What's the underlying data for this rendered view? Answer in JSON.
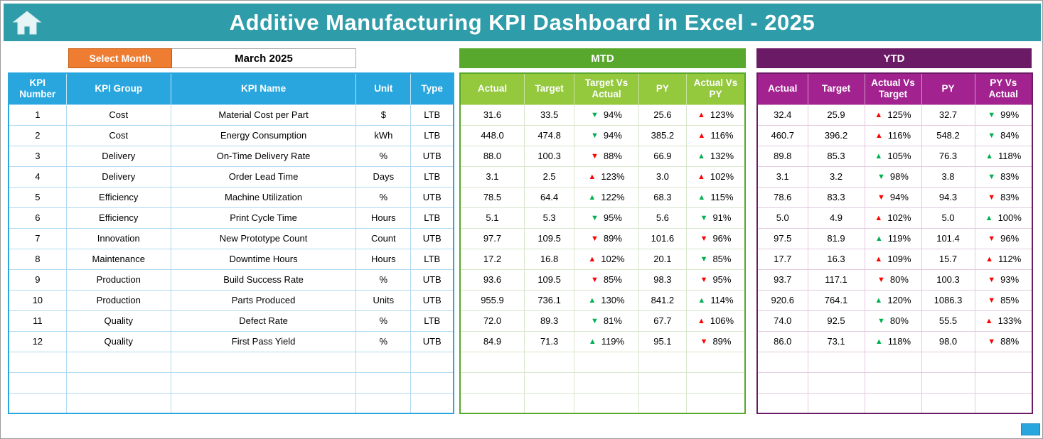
{
  "header": {
    "title": "Additive Manufacturing KPI Dashboard in Excel - 2025"
  },
  "controls": {
    "select_month_label": "Select Month",
    "selected_month": "March 2025"
  },
  "sections": {
    "mtd_label": "MTD",
    "ytd_label": "YTD"
  },
  "icons": {
    "up": "▲",
    "down": "▼",
    "home": "home-icon"
  },
  "colors": {
    "good": "#00B050",
    "bad": "#FF0000",
    "teal_header": "#2F9DA9",
    "orange": "#EE7D31",
    "mtd_green": "#57A82C",
    "mtd_header_green": "#94C83D",
    "ytd_purple": "#6B1A66",
    "ytd_header_magenta": "#A2238F",
    "kpi_header_blue": "#2AA6DF"
  },
  "table": {
    "left_headers": [
      "KPI Number",
      "KPI Group",
      "KPI Name",
      "Unit",
      "Type"
    ],
    "mtd_headers": [
      "Actual",
      "Target",
      "Target Vs Actual",
      "PY",
      "Actual Vs PY"
    ],
    "ytd_headers": [
      "Actual",
      "Target",
      "Actual Vs Target",
      "PY",
      "PY Vs Actual"
    ],
    "empty_rows": 3,
    "rows": [
      {
        "number": "1",
        "group": "Cost",
        "name": "Material Cost per Part",
        "unit": "$",
        "type": "LTB",
        "mtd": {
          "actual": "31.6",
          "target": "33.5",
          "target_vs_actual": {
            "dir": "down",
            "color": "good",
            "value": "94%"
          },
          "py": "25.6",
          "actual_vs_py": {
            "dir": "up",
            "color": "bad",
            "value": "123%"
          }
        },
        "ytd": {
          "actual": "32.4",
          "target": "25.9",
          "actual_vs_target": {
            "dir": "up",
            "color": "bad",
            "value": "125%"
          },
          "py": "32.7",
          "py_vs_actual": {
            "dir": "down",
            "color": "good",
            "value": "99%"
          }
        }
      },
      {
        "number": "2",
        "group": "Cost",
        "name": "Energy Consumption",
        "unit": "kWh",
        "type": "LTB",
        "mtd": {
          "actual": "448.0",
          "target": "474.8",
          "target_vs_actual": {
            "dir": "down",
            "color": "good",
            "value": "94%"
          },
          "py": "385.2",
          "actual_vs_py": {
            "dir": "up",
            "color": "bad",
            "value": "116%"
          }
        },
        "ytd": {
          "actual": "460.7",
          "target": "396.2",
          "actual_vs_target": {
            "dir": "up",
            "color": "bad",
            "value": "116%"
          },
          "py": "548.2",
          "py_vs_actual": {
            "dir": "down",
            "color": "good",
            "value": "84%"
          }
        }
      },
      {
        "number": "3",
        "group": "Delivery",
        "name": "On-Time Delivery Rate",
        "unit": "%",
        "type": "UTB",
        "mtd": {
          "actual": "88.0",
          "target": "100.3",
          "target_vs_actual": {
            "dir": "down",
            "color": "bad",
            "value": "88%"
          },
          "py": "66.9",
          "actual_vs_py": {
            "dir": "up",
            "color": "good",
            "value": "132%"
          }
        },
        "ytd": {
          "actual": "89.8",
          "target": "85.3",
          "actual_vs_target": {
            "dir": "up",
            "color": "good",
            "value": "105%"
          },
          "py": "76.3",
          "py_vs_actual": {
            "dir": "up",
            "color": "good",
            "value": "118%"
          }
        }
      },
      {
        "number": "4",
        "group": "Delivery",
        "name": "Order Lead Time",
        "unit": "Days",
        "type": "LTB",
        "mtd": {
          "actual": "3.1",
          "target": "2.5",
          "target_vs_actual": {
            "dir": "up",
            "color": "bad",
            "value": "123%"
          },
          "py": "3.0",
          "actual_vs_py": {
            "dir": "up",
            "color": "bad",
            "value": "102%"
          }
        },
        "ytd": {
          "actual": "3.1",
          "target": "3.2",
          "actual_vs_target": {
            "dir": "down",
            "color": "good",
            "value": "98%"
          },
          "py": "3.8",
          "py_vs_actual": {
            "dir": "down",
            "color": "good",
            "value": "83%"
          }
        }
      },
      {
        "number": "5",
        "group": "Efficiency",
        "name": "Machine Utilization",
        "unit": "%",
        "type": "UTB",
        "mtd": {
          "actual": "78.5",
          "target": "64.4",
          "target_vs_actual": {
            "dir": "up",
            "color": "good",
            "value": "122%"
          },
          "py": "68.3",
          "actual_vs_py": {
            "dir": "up",
            "color": "good",
            "value": "115%"
          }
        },
        "ytd": {
          "actual": "78.6",
          "target": "83.3",
          "actual_vs_target": {
            "dir": "down",
            "color": "bad",
            "value": "94%"
          },
          "py": "94.3",
          "py_vs_actual": {
            "dir": "down",
            "color": "bad",
            "value": "83%"
          }
        }
      },
      {
        "number": "6",
        "group": "Efficiency",
        "name": "Print Cycle Time",
        "unit": "Hours",
        "type": "LTB",
        "mtd": {
          "actual": "5.1",
          "target": "5.3",
          "target_vs_actual": {
            "dir": "down",
            "color": "good",
            "value": "95%"
          },
          "py": "5.6",
          "actual_vs_py": {
            "dir": "down",
            "color": "good",
            "value": "91%"
          }
        },
        "ytd": {
          "actual": "5.0",
          "target": "4.9",
          "actual_vs_target": {
            "dir": "up",
            "color": "bad",
            "value": "102%"
          },
          "py": "5.0",
          "py_vs_actual": {
            "dir": "up",
            "color": "good",
            "value": "100%"
          }
        }
      },
      {
        "number": "7",
        "group": "Innovation",
        "name": "New Prototype Count",
        "unit": "Count",
        "type": "UTB",
        "mtd": {
          "actual": "97.7",
          "target": "109.5",
          "target_vs_actual": {
            "dir": "down",
            "color": "bad",
            "value": "89%"
          },
          "py": "101.6",
          "actual_vs_py": {
            "dir": "down",
            "color": "bad",
            "value": "96%"
          }
        },
        "ytd": {
          "actual": "97.5",
          "target": "81.9",
          "actual_vs_target": {
            "dir": "up",
            "color": "good",
            "value": "119%"
          },
          "py": "101.4",
          "py_vs_actual": {
            "dir": "down",
            "color": "bad",
            "value": "96%"
          }
        }
      },
      {
        "number": "8",
        "group": "Maintenance",
        "name": "Downtime Hours",
        "unit": "Hours",
        "type": "LTB",
        "mtd": {
          "actual": "17.2",
          "target": "16.8",
          "target_vs_actual": {
            "dir": "up",
            "color": "bad",
            "value": "102%"
          },
          "py": "20.1",
          "actual_vs_py": {
            "dir": "down",
            "color": "good",
            "value": "85%"
          }
        },
        "ytd": {
          "actual": "17.7",
          "target": "16.3",
          "actual_vs_target": {
            "dir": "up",
            "color": "bad",
            "value": "109%"
          },
          "py": "15.7",
          "py_vs_actual": {
            "dir": "up",
            "color": "bad",
            "value": "112%"
          }
        }
      },
      {
        "number": "9",
        "group": "Production",
        "name": "Build Success Rate",
        "unit": "%",
        "type": "UTB",
        "mtd": {
          "actual": "93.6",
          "target": "109.5",
          "target_vs_actual": {
            "dir": "down",
            "color": "bad",
            "value": "85%"
          },
          "py": "98.3",
          "actual_vs_py": {
            "dir": "down",
            "color": "bad",
            "value": "95%"
          }
        },
        "ytd": {
          "actual": "93.7",
          "target": "117.1",
          "actual_vs_target": {
            "dir": "down",
            "color": "bad",
            "value": "80%"
          },
          "py": "100.3",
          "py_vs_actual": {
            "dir": "down",
            "color": "bad",
            "value": "93%"
          }
        }
      },
      {
        "number": "10",
        "group": "Production",
        "name": "Parts Produced",
        "unit": "Units",
        "type": "UTB",
        "mtd": {
          "actual": "955.9",
          "target": "736.1",
          "target_vs_actual": {
            "dir": "up",
            "color": "good",
            "value": "130%"
          },
          "py": "841.2",
          "actual_vs_py": {
            "dir": "up",
            "color": "good",
            "value": "114%"
          }
        },
        "ytd": {
          "actual": "920.6",
          "target": "764.1",
          "actual_vs_target": {
            "dir": "up",
            "color": "good",
            "value": "120%"
          },
          "py": "1086.3",
          "py_vs_actual": {
            "dir": "down",
            "color": "bad",
            "value": "85%"
          }
        }
      },
      {
        "number": "11",
        "group": "Quality",
        "name": "Defect Rate",
        "unit": "%",
        "type": "LTB",
        "mtd": {
          "actual": "72.0",
          "target": "89.3",
          "target_vs_actual": {
            "dir": "down",
            "color": "good",
            "value": "81%"
          },
          "py": "67.7",
          "actual_vs_py": {
            "dir": "up",
            "color": "bad",
            "value": "106%"
          }
        },
        "ytd": {
          "actual": "74.0",
          "target": "92.5",
          "actual_vs_target": {
            "dir": "down",
            "color": "good",
            "value": "80%"
          },
          "py": "55.5",
          "py_vs_actual": {
            "dir": "up",
            "color": "bad",
            "value": "133%"
          }
        }
      },
      {
        "number": "12",
        "group": "Quality",
        "name": "First Pass Yield",
        "unit": "%",
        "type": "UTB",
        "mtd": {
          "actual": "84.9",
          "target": "71.3",
          "target_vs_actual": {
            "dir": "up",
            "color": "good",
            "value": "119%"
          },
          "py": "95.1",
          "actual_vs_py": {
            "dir": "down",
            "color": "bad",
            "value": "89%"
          }
        },
        "ytd": {
          "actual": "86.0",
          "target": "73.1",
          "actual_vs_target": {
            "dir": "up",
            "color": "good",
            "value": "118%"
          },
          "py": "98.0",
          "py_vs_actual": {
            "dir": "down",
            "color": "bad",
            "value": "88%"
          }
        }
      }
    ]
  }
}
